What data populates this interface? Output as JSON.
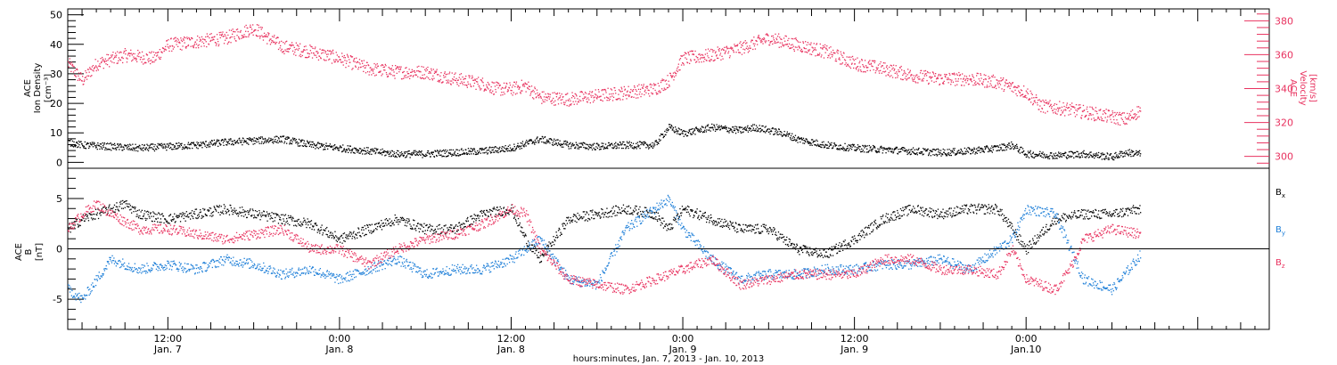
{
  "colors": {
    "black": "#000000",
    "red": "#e8325f",
    "blue": "#1e7fd8"
  },
  "time_axis": {
    "title": "hours:minutes, Jan.  7, 2013 - Jan. 10, 2013",
    "ticks": [
      {
        "time": "12:00",
        "date": "Jan. 7",
        "hours": 12
      },
      {
        "time": "0:00",
        "date": "Jan. 8",
        "hours": 24
      },
      {
        "time": "12:00",
        "date": "Jan. 8",
        "hours": 36
      },
      {
        "time": "0:00",
        "date": "Jan. 9",
        "hours": 48
      },
      {
        "time": "12:00",
        "date": "Jan. 9",
        "hours": 60
      },
      {
        "time": "0:00",
        "date": "Jan.10",
        "hours": 72
      }
    ]
  },
  "panels": {
    "top": {
      "left_label": [
        "ACE",
        "Ion Density",
        "[cm⁻³]"
      ],
      "right_label": [
        "ACE",
        "Velocity",
        "[km/s]"
      ]
    },
    "bottom": {
      "left_label": [
        "ACE",
        "B",
        "[nT]"
      ],
      "legend": [
        {
          "label": "B",
          "sub": "x",
          "color": "#000000"
        },
        {
          "label": "B",
          "sub": "y",
          "color": "#1e7fd8"
        },
        {
          "label": "B",
          "sub": "z",
          "color": "#e8325f"
        }
      ]
    }
  },
  "chart_data": [
    {
      "type": "scatter",
      "x_unit": "hours since 00:00 Jan. 7, 2013",
      "xlim": [
        5,
        89
      ],
      "ylim_left": [
        -2,
        52
      ],
      "left_ticks": [
        0,
        10,
        20,
        30,
        40,
        50
      ],
      "ylim_right": [
        293,
        387
      ],
      "right_ticks": [
        300,
        320,
        340,
        360,
        380
      ],
      "grid": false,
      "series": [
        {
          "name": "Ion Density",
          "axis": "left",
          "color": "#000000",
          "points": [
            [
              5,
              7
            ],
            [
              6,
              6
            ],
            [
              8,
              5.5
            ],
            [
              10,
              5
            ],
            [
              12,
              5.5
            ],
            [
              14,
              6
            ],
            [
              16,
              7
            ],
            [
              18,
              7.5
            ],
            [
              20,
              8
            ],
            [
              22,
              6
            ],
            [
              24,
              5
            ],
            [
              26,
              4
            ],
            [
              28,
              3
            ],
            [
              30,
              3
            ],
            [
              32,
              3.5
            ],
            [
              34,
              4
            ],
            [
              36,
              5
            ],
            [
              38,
              8
            ],
            [
              40,
              6
            ],
            [
              42,
              5.5
            ],
            [
              44,
              6
            ],
            [
              46,
              6
            ],
            [
              47,
              12
            ],
            [
              48,
              10
            ],
            [
              50,
              12
            ],
            [
              52,
              11
            ],
            [
              53,
              12
            ],
            [
              55,
              10
            ],
            [
              56,
              8
            ],
            [
              58,
              6
            ],
            [
              60,
              5
            ],
            [
              62,
              4.5
            ],
            [
              64,
              4
            ],
            [
              66,
              3.5
            ],
            [
              68,
              4
            ],
            [
              70,
              5
            ],
            [
              71,
              6
            ],
            [
              72,
              3
            ],
            [
              74,
              2.5
            ],
            [
              76,
              3
            ],
            [
              78,
              2
            ],
            [
              79,
              3.5
            ],
            [
              80,
              3
            ]
          ]
        },
        {
          "name": "Velocity",
          "axis": "right",
          "color": "#e8325f",
          "points": [
            [
              5,
              355
            ],
            [
              6,
              345
            ],
            [
              7,
              355
            ],
            [
              9,
              360
            ],
            [
              11,
              358
            ],
            [
              12,
              366
            ],
            [
              14,
              368
            ],
            [
              16,
              370
            ],
            [
              18,
              376
            ],
            [
              19,
              370
            ],
            [
              20,
              365
            ],
            [
              22,
              362
            ],
            [
              24,
              358
            ],
            [
              26,
              352
            ],
            [
              28,
              350
            ],
            [
              30,
              350
            ],
            [
              32,
              346
            ],
            [
              34,
              343
            ],
            [
              35,
              340
            ],
            [
              36,
              340
            ],
            [
              37,
              342
            ],
            [
              38,
              335
            ],
            [
              40,
              334
            ],
            [
              42,
              336
            ],
            [
              44,
              338
            ],
            [
              46,
              340
            ],
            [
              47,
              345
            ],
            [
              48,
              358
            ],
            [
              50,
              360
            ],
            [
              52,
              364
            ],
            [
              54,
              370
            ],
            [
              55,
              368
            ],
            [
              56,
              366
            ],
            [
              58,
              362
            ],
            [
              60,
              355
            ],
            [
              62,
              352
            ],
            [
              64,
              348
            ],
            [
              66,
              346
            ],
            [
              68,
              346
            ],
            [
              70,
              344
            ],
            [
              72,
              338
            ],
            [
              73,
              330
            ],
            [
              75,
              328
            ],
            [
              77,
              325
            ],
            [
              79,
              322
            ],
            [
              80,
              328
            ]
          ]
        }
      ]
    },
    {
      "type": "scatter",
      "x_unit": "hours since 00:00 Jan. 7, 2013",
      "xlim": [
        5,
        89
      ],
      "ylim": [
        -8,
        8
      ],
      "ticks": [
        -5,
        0,
        5
      ],
      "zero_line": true,
      "grid": false,
      "series": [
        {
          "name": "Bx",
          "color": "#000000",
          "points": [
            [
              5,
              2
            ],
            [
              6,
              3
            ],
            [
              7,
              3.5
            ],
            [
              8,
              4
            ],
            [
              9,
              4.5
            ],
            [
              10,
              3.5
            ],
            [
              12,
              3
            ],
            [
              14,
              3.5
            ],
            [
              16,
              4
            ],
            [
              18,
              3.5
            ],
            [
              20,
              3
            ],
            [
              22,
              2.5
            ],
            [
              24,
              1
            ],
            [
              26,
              2
            ],
            [
              28,
              3
            ],
            [
              30,
              2
            ],
            [
              32,
              2
            ],
            [
              34,
              3.5
            ],
            [
              36,
              4
            ],
            [
              37,
              1
            ],
            [
              38,
              -1
            ],
            [
              40,
              3
            ],
            [
              42,
              3.5
            ],
            [
              44,
              4
            ],
            [
              46,
              3.5
            ],
            [
              47,
              2
            ],
            [
              48,
              4
            ],
            [
              50,
              3
            ],
            [
              52,
              2
            ],
            [
              54,
              2
            ],
            [
              56,
              0
            ],
            [
              58,
              -0.5
            ],
            [
              60,
              1
            ],
            [
              62,
              3
            ],
            [
              64,
              4
            ],
            [
              66,
              3.5
            ],
            [
              68,
              4
            ],
            [
              70,
              4
            ],
            [
              71,
              2
            ],
            [
              72,
              0
            ],
            [
              74,
              3
            ],
            [
              76,
              3.5
            ],
            [
              78,
              3.5
            ],
            [
              80,
              4
            ]
          ]
        },
        {
          "name": "By",
          "color": "#1e7fd8",
          "points": [
            [
              5,
              -4
            ],
            [
              6,
              -5
            ],
            [
              7,
              -3
            ],
            [
              8,
              -1
            ],
            [
              10,
              -2
            ],
            [
              12,
              -1.5
            ],
            [
              14,
              -2
            ],
            [
              16,
              -1
            ],
            [
              18,
              -1.5
            ],
            [
              20,
              -2.5
            ],
            [
              22,
              -2
            ],
            [
              24,
              -3
            ],
            [
              26,
              -2
            ],
            [
              28,
              -1
            ],
            [
              30,
              -2.5
            ],
            [
              32,
              -2
            ],
            [
              34,
              -2
            ],
            [
              36,
              -1
            ],
            [
              38,
              1
            ],
            [
              40,
              -3
            ],
            [
              42,
              -3.5
            ],
            [
              44,
              2
            ],
            [
              46,
              4
            ],
            [
              47,
              5
            ],
            [
              48,
              2
            ],
            [
              50,
              -1
            ],
            [
              52,
              -3
            ],
            [
              54,
              -2.5
            ],
            [
              56,
              -2.5
            ],
            [
              58,
              -2
            ],
            [
              60,
              -2
            ],
            [
              62,
              -1.5
            ],
            [
              64,
              -1.5
            ],
            [
              66,
              -1
            ],
            [
              68,
              -2
            ],
            [
              70,
              0
            ],
            [
              71,
              1
            ],
            [
              72,
              4
            ],
            [
              74,
              3.5
            ],
            [
              76,
              -3
            ],
            [
              78,
              -4
            ],
            [
              80,
              -0.5
            ]
          ]
        },
        {
          "name": "Bz",
          "color": "#e8325f",
          "points": [
            [
              5,
              2
            ],
            [
              6,
              3.5
            ],
            [
              7,
              4.5
            ],
            [
              8,
              3.5
            ],
            [
              10,
              2
            ],
            [
              12,
              2
            ],
            [
              14,
              1.5
            ],
            [
              16,
              1
            ],
            [
              18,
              1.5
            ],
            [
              20,
              2
            ],
            [
              22,
              0
            ],
            [
              24,
              0
            ],
            [
              26,
              -1.5
            ],
            [
              28,
              0
            ],
            [
              30,
              1
            ],
            [
              32,
              1.5
            ],
            [
              34,
              2.5
            ],
            [
              36,
              4
            ],
            [
              37,
              3.5
            ],
            [
              38,
              0
            ],
            [
              40,
              -3
            ],
            [
              42,
              -3.5
            ],
            [
              44,
              -4
            ],
            [
              46,
              -3
            ],
            [
              48,
              -2
            ],
            [
              50,
              -1
            ],
            [
              52,
              -3.5
            ],
            [
              54,
              -3
            ],
            [
              56,
              -2.5
            ],
            [
              58,
              -2.5
            ],
            [
              60,
              -2.5
            ],
            [
              62,
              -1
            ],
            [
              64,
              -1
            ],
            [
              66,
              -2
            ],
            [
              68,
              -2
            ],
            [
              70,
              -2.5
            ],
            [
              71,
              0
            ],
            [
              72,
              -3
            ],
            [
              74,
              -4
            ],
            [
              75,
              -2
            ],
            [
              76,
              1
            ],
            [
              78,
              2
            ],
            [
              80,
              1.5
            ]
          ]
        }
      ]
    }
  ]
}
